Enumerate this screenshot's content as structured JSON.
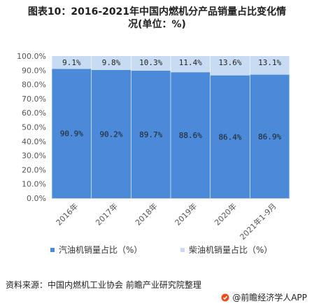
{
  "title": {
    "line1": "图表10：2016-2021年中国内燃机分产品销量占比变化情",
    "line2": "况(单位：%)"
  },
  "chart_data": {
    "type": "bar",
    "stacked": true,
    "categories": [
      "2016年",
      "2017年",
      "2018年",
      "2019年",
      "2020年",
      "2021年1-9月"
    ],
    "series": [
      {
        "name": "汽油机销量占比（%）",
        "values": [
          90.9,
          90.2,
          89.7,
          88.6,
          86.4,
          86.9
        ],
        "labels": [
          "90.9%",
          "90.2%",
          "89.7%",
          "88.6%",
          "86.4%",
          "86.9%"
        ],
        "color": "#4a8ad8"
      },
      {
        "name": "柴油机销量占比（%）",
        "values": [
          9.1,
          9.8,
          10.3,
          11.4,
          13.6,
          13.1
        ],
        "labels": [
          "9.1%",
          "9.8%",
          "10.3%",
          "11.4%",
          "13.6%",
          "13.1%"
        ],
        "color": "#c7dcf3"
      }
    ],
    "yticks": [
      "0.0%",
      "10.0%",
      "20.0%",
      "30.0%",
      "40.0%",
      "50.0%",
      "60.0%",
      "70.0%",
      "80.0%",
      "90.0%",
      "100.0%"
    ],
    "ylim": [
      0,
      100
    ],
    "grid": false,
    "legend_position": "bottom"
  },
  "source": "资料来源：中国内燃机工业协会 前瞻产业研究院整理",
  "brand": "@前瞻经济学人APP",
  "icons": {
    "brand_logo": "qianzhan-logo-icon"
  }
}
